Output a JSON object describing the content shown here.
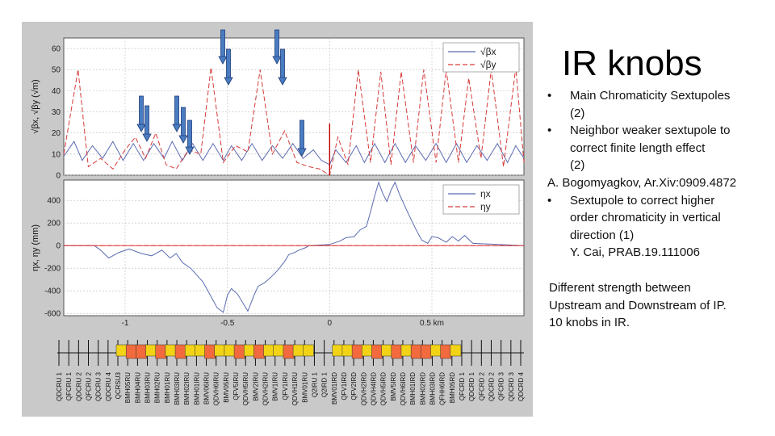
{
  "slide": {
    "title": "IR knobs",
    "notes": [
      {
        "kind": "bullet",
        "bullet": "•",
        "text": "Main Chromaticity Sextupoles"
      },
      {
        "kind": "indent",
        "text": "(2)"
      },
      {
        "kind": "bullet",
        "bullet": "•",
        "text": "Neighbor weaker sextupole to"
      },
      {
        "kind": "indent",
        "text": "correct finite length effect"
      },
      {
        "kind": "indent",
        "text": "(2)"
      },
      {
        "kind": "plain",
        "text": "A. Bogomyagkov, Ar.Xiv:0909.4872"
      },
      {
        "kind": "bullet",
        "bullet": "•",
        "text": "Sextupole to correct higher"
      },
      {
        "kind": "indent",
        "text": "order   chromaticity in vertical"
      },
      {
        "kind": "indent",
        "text": "direction (1)"
      },
      {
        "kind": "indent",
        "text": "Y. Cai,  PRAB.19.111006"
      }
    ],
    "difference_note": [
      "Different strength between",
      "Upstream and Downstream of IP.",
      "10 knobs in IR."
    ]
  },
  "colors": {
    "x_series": "#5b6bb0",
    "y_series": "#d63a3a",
    "arrow": "#4a7cc0",
    "arrow_edge": "#1f3d7a",
    "yellow_magnet": "#f2d316",
    "red_magnet": "#f26a3d",
    "ip_line": "#c00000",
    "zero_line": "#e04040"
  },
  "icons": {
    "knob_marker": "arrow-down-icon"
  },
  "chart_data": [
    {
      "type": "line",
      "panel": "beta",
      "ylabel": "√βx, √βy (√m)",
      "ylim": [
        0,
        65
      ],
      "xlim": [
        -1.3,
        0.95
      ],
      "yticks": [
        0,
        10,
        20,
        30,
        40,
        50,
        60
      ],
      "grid": true,
      "legend_position": "top-right",
      "legend": [
        "√βx",
        "√βy"
      ],
      "ip_marker_x": 0,
      "series": [
        {
          "name": "√βx",
          "style": "solid",
          "x": [
            -1.3,
            -1.25,
            -1.21,
            -1.16,
            -1.11,
            -1.06,
            -1.01,
            -0.96,
            -0.91,
            -0.86,
            -0.81,
            -0.77,
            -0.72,
            -0.67,
            -0.62,
            -0.57,
            -0.52,
            -0.48,
            -0.43,
            -0.38,
            -0.33,
            -0.28,
            -0.23,
            -0.18,
            -0.13,
            -0.08,
            -0.04,
            0.0,
            0.03,
            0.08,
            0.13,
            0.17,
            0.22,
            0.27,
            0.32,
            0.37,
            0.42,
            0.47,
            0.52,
            0.57,
            0.62,
            0.67,
            0.72,
            0.77,
            0.82,
            0.87,
            0.91,
            0.95
          ],
          "values": [
            9,
            16,
            7,
            14,
            8,
            16,
            7,
            15,
            7,
            15,
            8,
            16,
            7,
            15,
            7,
            15,
            7,
            14,
            7,
            15,
            7,
            14,
            8,
            15,
            8,
            12,
            7,
            5,
            12,
            6,
            14,
            6,
            15,
            6,
            15,
            6,
            14,
            7,
            15,
            6,
            15,
            6,
            14,
            7,
            15,
            6,
            14,
            8
          ]
        },
        {
          "name": "√βy",
          "style": "dashed",
          "x": [
            -1.3,
            -1.23,
            -1.18,
            -1.12,
            -1.06,
            -1.0,
            -0.95,
            -0.9,
            -0.85,
            -0.8,
            -0.75,
            -0.69,
            -0.63,
            -0.58,
            -0.52,
            -0.46,
            -0.4,
            -0.34,
            -0.28,
            -0.22,
            -0.16,
            -0.1,
            -0.05,
            0.0,
            0.04,
            0.09,
            0.14,
            0.2,
            0.25,
            0.3,
            0.35,
            0.41,
            0.46,
            0.52,
            0.57,
            0.63,
            0.68,
            0.74,
            0.79,
            0.85,
            0.91,
            0.95
          ],
          "values": [
            10,
            50,
            4,
            8,
            3,
            12,
            18,
            8,
            20,
            5,
            3,
            12,
            10,
            51,
            6,
            14,
            11,
            50,
            10,
            21,
            6,
            4,
            3,
            0,
            18,
            5,
            50,
            6,
            49,
            5,
            49,
            6,
            50,
            6,
            50,
            6,
            46,
            8,
            50,
            4,
            51,
            6
          ]
        }
      ]
    },
    {
      "type": "line",
      "panel": "dispersion",
      "ylabel": "ηx, ηy (mm)",
      "xlabel_unit": "km",
      "ylim": [
        -620,
        580
      ],
      "xlim": [
        -1.3,
        0.95
      ],
      "yticks": [
        -600,
        -400,
        -200,
        0,
        200,
        400
      ],
      "xticks": [
        -1,
        -0.5,
        0,
        0.5
      ],
      "xtick_labels": [
        "-1",
        "-0.5",
        "0",
        "0.5 km"
      ],
      "grid": true,
      "legend_position": "top-right",
      "legend": [
        "ηx",
        "ηy"
      ],
      "series": [
        {
          "name": "ηx",
          "style": "solid",
          "x": [
            -1.3,
            -1.15,
            -1.12,
            -1.08,
            -1.03,
            -0.98,
            -0.92,
            -0.87,
            -0.82,
            -0.78,
            -0.75,
            -0.72,
            -0.68,
            -0.62,
            -0.58,
            -0.55,
            -0.52,
            -0.5,
            -0.48,
            -0.45,
            -0.42,
            -0.4,
            -0.37,
            -0.35,
            -0.32,
            -0.3,
            -0.27,
            -0.25,
            -0.22,
            -0.2,
            -0.17,
            -0.15,
            -0.12,
            -0.1,
            -0.05,
            0.0,
            0.05,
            0.08,
            0.12,
            0.15,
            0.18,
            0.2,
            0.22,
            0.24,
            0.26,
            0.28,
            0.3,
            0.32,
            0.34,
            0.36,
            0.38,
            0.42,
            0.45,
            0.48,
            0.5,
            0.53,
            0.57,
            0.6,
            0.63,
            0.66,
            0.7,
            0.95
          ],
          "values": [
            0,
            0,
            -40,
            -110,
            -60,
            -30,
            -70,
            -90,
            -40,
            -110,
            -70,
            -150,
            -200,
            -320,
            -450,
            -550,
            -590,
            -440,
            -380,
            -430,
            -520,
            -580,
            -440,
            -360,
            -330,
            -300,
            -250,
            -210,
            -140,
            -80,
            -60,
            -40,
            -20,
            0,
            5,
            10,
            40,
            70,
            80,
            140,
            170,
            300,
            440,
            560,
            460,
            390,
            490,
            560,
            460,
            380,
            300,
            150,
            50,
            20,
            80,
            70,
            30,
            80,
            40,
            90,
            20,
            0
          ]
        },
        {
          "name": "ηy",
          "style": "dashed",
          "x": [
            -1.3,
            0.95
          ],
          "values": [
            0,
            0
          ]
        }
      ]
    },
    {
      "type": "other",
      "panel": "lattice",
      "description_source": "element labels",
      "element_labels": [
        "QDCRU 1",
        "QFCRU 1",
        "QDCRU 2",
        "QFCRU 2",
        "QDCRU 3",
        "QDCRU 4",
        "QCRSU3",
        "BMH05RU",
        "BMH04RU",
        "BMH03RU",
        "BMH02RU",
        "BMH01RU",
        "BMH03IRU",
        "BMH02IRU",
        "BMH01IRU",
        "BMV06IRU",
        "QDVH6IRU",
        "BMV05RU",
        "QFV5IRU",
        "QDVH5IRU",
        "BMV2IRU",
        "QDVH2IRU",
        "BMV1IRU",
        "QFV1IRU",
        "QDVH1IRU",
        "BMV01RU",
        "Q2IRU 1",
        "Q2IRD 1",
        "BMV01IRD",
        "QFV1IRD",
        "QFV2IRD",
        "QDVH2IRD",
        "QDVH4IRD",
        "QDVH5IRD",
        "BMV5IRD",
        "QDVH6IRD",
        "BMH01IRD",
        "BMH02IRD",
        "BMH03IRD",
        "QFHH6IRD",
        "BMH05RD",
        "QFCRD 1",
        "QDCRD 1",
        "QFCRD 2",
        "QDCRD 2",
        "QFCRD 3",
        "QDCRD 3",
        "QDCRD 4"
      ]
    }
  ]
}
